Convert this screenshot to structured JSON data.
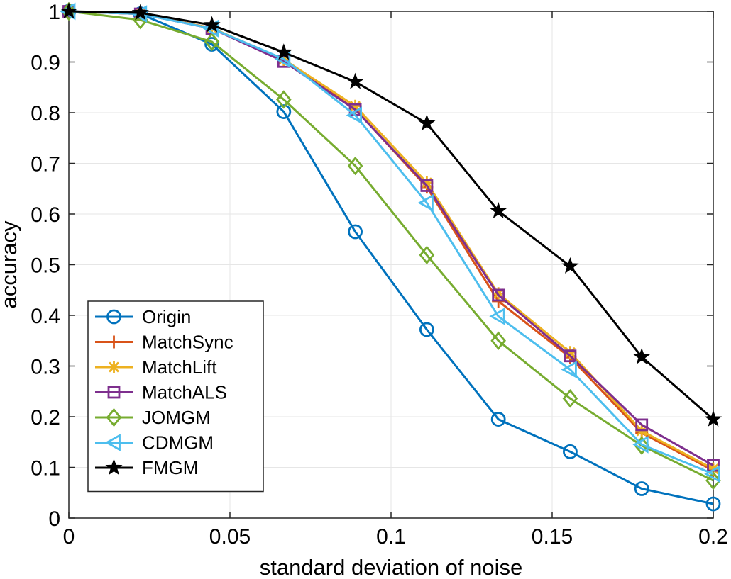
{
  "chart_data": {
    "type": "line",
    "title": "",
    "xlabel": "standard deviation of noise",
    "ylabel": "accuracy",
    "xlim": [
      0,
      0.2
    ],
    "ylim": [
      0,
      1
    ],
    "grid": true,
    "legend_position": "lower-left",
    "x": [
      0,
      0.0222,
      0.0444,
      0.0667,
      0.0889,
      0.1111,
      0.1333,
      0.1556,
      0.1778,
      0.2
    ],
    "xticks": [
      {
        "value": 0,
        "label": "0"
      },
      {
        "value": 0.05,
        "label": "0.05"
      },
      {
        "value": 0.1,
        "label": "0.1"
      },
      {
        "value": 0.15,
        "label": "0.15"
      },
      {
        "value": 0.2,
        "label": "0.2"
      }
    ],
    "yticks": [
      {
        "value": 0,
        "label": "0"
      },
      {
        "value": 0.1,
        "label": "0.1"
      },
      {
        "value": 0.2,
        "label": "0.2"
      },
      {
        "value": 0.3,
        "label": "0.3"
      },
      {
        "value": 0.4,
        "label": "0.4"
      },
      {
        "value": 0.5,
        "label": "0.5"
      },
      {
        "value": 0.6,
        "label": "0.6"
      },
      {
        "value": 0.7,
        "label": "0.7"
      },
      {
        "value": 0.8,
        "label": "0.8"
      },
      {
        "value": 0.9,
        "label": "0.9"
      },
      {
        "value": 1,
        "label": "1"
      }
    ],
    "series": [
      {
        "name": "Origin",
        "color": "#0072BD",
        "marker": "circle",
        "values": [
          1.0,
          0.995,
          0.935,
          0.802,
          0.565,
          0.372,
          0.195,
          0.131,
          0.058,
          0.028
        ]
      },
      {
        "name": "MatchSync",
        "color": "#D95319",
        "marker": "plus",
        "values": [
          1.0,
          0.995,
          0.967,
          0.903,
          0.807,
          0.653,
          0.428,
          0.317,
          0.168,
          0.094
        ]
      },
      {
        "name": "MatchLift",
        "color": "#EDB120",
        "marker": "asterisk",
        "values": [
          1.0,
          0.995,
          0.967,
          0.905,
          0.813,
          0.662,
          0.443,
          0.327,
          0.172,
          0.097
        ]
      },
      {
        "name": "MatchALS",
        "color": "#7E2F8E",
        "marker": "square",
        "values": [
          1.0,
          0.995,
          0.966,
          0.901,
          0.806,
          0.656,
          0.44,
          0.32,
          0.184,
          0.104
        ]
      },
      {
        "name": "JOMGM",
        "color": "#77AC30",
        "marker": "diamond",
        "values": [
          1.0,
          0.983,
          0.94,
          0.826,
          0.695,
          0.519,
          0.35,
          0.236,
          0.143,
          0.074
        ]
      },
      {
        "name": "CDMGM",
        "color": "#4DBEEE",
        "marker": "triangle-left",
        "values": [
          1.0,
          0.995,
          0.966,
          0.906,
          0.795,
          0.622,
          0.398,
          0.293,
          0.145,
          0.087
        ]
      },
      {
        "name": "FMGM",
        "color": "#000000",
        "marker": "star",
        "values": [
          1.0,
          0.997,
          0.973,
          0.919,
          0.861,
          0.779,
          0.606,
          0.497,
          0.318,
          0.195
        ]
      }
    ]
  }
}
